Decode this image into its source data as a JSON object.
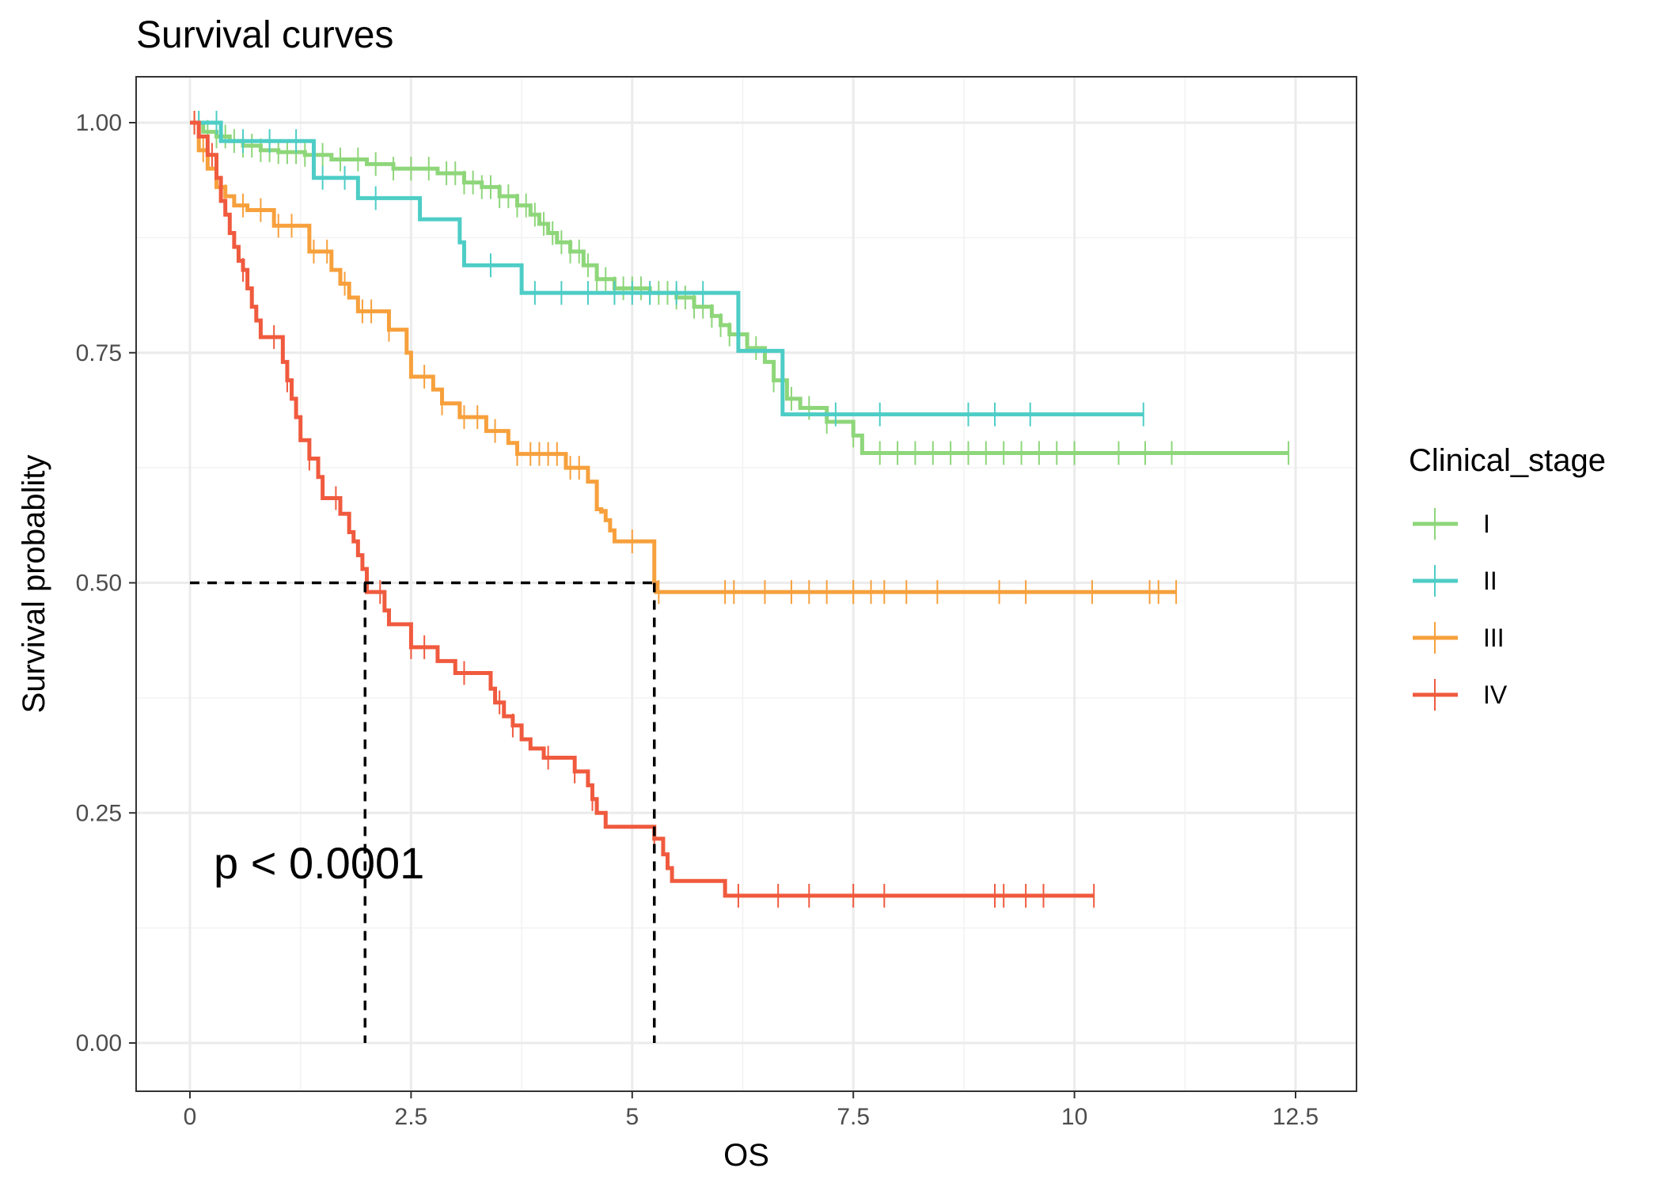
{
  "chart_data": {
    "type": "line",
    "title": "Survival curves",
    "xlabel": "OS",
    "ylabel": "Survival probablity",
    "xlim": [
      -0.3,
      12.8
    ],
    "ylim": [
      -0.05,
      1.05
    ],
    "x_ticks": [
      "0",
      "2.5",
      "5",
      "7.5",
      "10",
      "12.5"
    ],
    "y_ticks": [
      "0.00",
      "0.25",
      "0.50",
      "0.75",
      "1.00"
    ],
    "grid": true,
    "legend_title": "Clinical_stage",
    "legend_position": "right",
    "annotation": "p < 0.0001",
    "median_lines": [
      {
        "x": 1.98,
        "y": 0.5
      },
      {
        "x": 5.25,
        "y": 0.5
      }
    ],
    "series": [
      {
        "name": "I",
        "color": "#8ed67a",
        "steps": [
          [
            0,
            1.0
          ],
          [
            0.15,
            0.99
          ],
          [
            0.3,
            0.985
          ],
          [
            0.45,
            0.98
          ],
          [
            0.6,
            0.975
          ],
          [
            0.8,
            0.97
          ],
          [
            1.0,
            0.968
          ],
          [
            1.3,
            0.965
          ],
          [
            1.6,
            0.96
          ],
          [
            2.0,
            0.955
          ],
          [
            2.3,
            0.95
          ],
          [
            2.8,
            0.945
          ],
          [
            3.1,
            0.935
          ],
          [
            3.3,
            0.93
          ],
          [
            3.5,
            0.92
          ],
          [
            3.7,
            0.91
          ],
          [
            3.85,
            0.9
          ],
          [
            3.95,
            0.89
          ],
          [
            4.05,
            0.88
          ],
          [
            4.15,
            0.87
          ],
          [
            4.3,
            0.86
          ],
          [
            4.45,
            0.845
          ],
          [
            4.6,
            0.83
          ],
          [
            4.8,
            0.82
          ],
          [
            5.2,
            0.815
          ],
          [
            5.5,
            0.81
          ],
          [
            5.7,
            0.8
          ],
          [
            5.9,
            0.79
          ],
          [
            6.0,
            0.78
          ],
          [
            6.1,
            0.77
          ],
          [
            6.3,
            0.755
          ],
          [
            6.5,
            0.74
          ],
          [
            6.6,
            0.72
          ],
          [
            6.75,
            0.7
          ],
          [
            6.9,
            0.69
          ],
          [
            7.2,
            0.675
          ],
          [
            7.5,
            0.66
          ],
          [
            7.6,
            0.641
          ],
          [
            12.42,
            0.641
          ]
        ],
        "censor_x": [
          0.05,
          0.1,
          0.2,
          0.3,
          0.4,
          0.5,
          0.6,
          0.7,
          0.8,
          0.9,
          1.0,
          1.1,
          1.2,
          1.3,
          1.5,
          1.7,
          1.9,
          2.1,
          2.3,
          2.5,
          2.7,
          2.9,
          3.0,
          3.1,
          3.2,
          3.3,
          3.4,
          3.5,
          3.6,
          3.7,
          3.8,
          3.9,
          4.0,
          4.1,
          4.2,
          4.3,
          4.4,
          4.5,
          4.6,
          4.7,
          4.8,
          4.9,
          5.0,
          5.1,
          5.2,
          5.3,
          5.4,
          5.5,
          5.6,
          5.7,
          5.8,
          5.9,
          6.0,
          6.1,
          6.2,
          6.4,
          6.6,
          6.8,
          7.0,
          7.2,
          7.5,
          7.8,
          8.0,
          8.2,
          8.4,
          8.6,
          8.8,
          9.0,
          9.2,
          9.4,
          9.6,
          9.8,
          10.0,
          10.5,
          10.8,
          11.1,
          12.42
        ]
      },
      {
        "name": "II",
        "color": "#4dcdc6",
        "steps": [
          [
            0,
            1.0
          ],
          [
            0.35,
            0.98
          ],
          [
            1.4,
            0.94
          ],
          [
            1.9,
            0.918
          ],
          [
            2.6,
            0.895
          ],
          [
            3.05,
            0.87
          ],
          [
            3.1,
            0.845
          ],
          [
            3.75,
            0.815
          ],
          [
            6.2,
            0.752
          ],
          [
            6.7,
            0.683
          ],
          [
            10.78,
            0.683
          ]
        ],
        "censor_x": [
          0.1,
          0.3,
          0.6,
          0.9,
          1.2,
          1.5,
          1.75,
          2.1,
          3.4,
          3.9,
          4.2,
          4.5,
          4.8,
          5.0,
          5.2,
          5.5,
          5.8,
          7.3,
          7.8,
          8.8,
          9.1,
          9.5,
          10.78
        ]
      },
      {
        "name": "III",
        "color": "#f7a03c",
        "steps": [
          [
            0,
            1.0
          ],
          [
            0.1,
            0.97
          ],
          [
            0.2,
            0.95
          ],
          [
            0.3,
            0.93
          ],
          [
            0.4,
            0.92
          ],
          [
            0.5,
            0.91
          ],
          [
            0.65,
            0.905
          ],
          [
            0.95,
            0.888
          ],
          [
            1.35,
            0.86
          ],
          [
            1.6,
            0.84
          ],
          [
            1.7,
            0.825
          ],
          [
            1.8,
            0.81
          ],
          [
            1.9,
            0.795
          ],
          [
            2.25,
            0.775
          ],
          [
            2.45,
            0.75
          ],
          [
            2.5,
            0.724
          ],
          [
            2.75,
            0.71
          ],
          [
            2.85,
            0.695
          ],
          [
            3.05,
            0.68
          ],
          [
            3.35,
            0.665
          ],
          [
            3.6,
            0.652
          ],
          [
            3.7,
            0.64
          ],
          [
            4.25,
            0.625
          ],
          [
            4.5,
            0.61
          ],
          [
            4.6,
            0.58
          ],
          [
            4.65,
            0.575
          ],
          [
            4.65,
            0.578
          ],
          [
            4.7,
            0.568
          ],
          [
            4.75,
            0.557
          ],
          [
            4.8,
            0.545
          ],
          [
            5.25,
            0.5
          ],
          [
            5.27,
            0.49
          ],
          [
            11.15,
            0.49
          ]
        ],
        "censor_x": [
          0.05,
          0.15,
          0.4,
          0.6,
          0.8,
          1.0,
          1.15,
          1.4,
          1.55,
          1.75,
          1.95,
          2.05,
          2.25,
          2.65,
          2.85,
          3.1,
          3.25,
          3.45,
          3.7,
          3.85,
          3.95,
          4.05,
          4.15,
          4.3,
          4.4,
          5.0,
          5.3,
          6.05,
          6.15,
          6.5,
          6.8,
          7.0,
          7.2,
          7.5,
          7.7,
          7.85,
          8.1,
          8.45,
          9.15,
          9.45,
          10.2,
          10.85,
          10.95,
          11.15
        ]
      },
      {
        "name": "IV",
        "color": "#f05a3e",
        "steps": [
          [
            0,
            1.0
          ],
          [
            0.1,
            0.985
          ],
          [
            0.2,
            0.965
          ],
          [
            0.3,
            0.94
          ],
          [
            0.35,
            0.915
          ],
          [
            0.4,
            0.9
          ],
          [
            0.45,
            0.88
          ],
          [
            0.5,
            0.865
          ],
          [
            0.55,
            0.85
          ],
          [
            0.6,
            0.84
          ],
          [
            0.65,
            0.82
          ],
          [
            0.7,
            0.8
          ],
          [
            0.75,
            0.785
          ],
          [
            0.8,
            0.767
          ],
          [
            1.05,
            0.74
          ],
          [
            1.1,
            0.72
          ],
          [
            1.15,
            0.7
          ],
          [
            1.2,
            0.68
          ],
          [
            1.25,
            0.655
          ],
          [
            1.35,
            0.635
          ],
          [
            1.45,
            0.615
          ],
          [
            1.5,
            0.592
          ],
          [
            1.7,
            0.575
          ],
          [
            1.8,
            0.555
          ],
          [
            1.85,
            0.545
          ],
          [
            1.9,
            0.53
          ],
          [
            1.95,
            0.515
          ],
          [
            2.0,
            0.49
          ],
          [
            2.2,
            0.47
          ],
          [
            2.25,
            0.455
          ],
          [
            2.5,
            0.43
          ],
          [
            2.8,
            0.415
          ],
          [
            3.0,
            0.402
          ],
          [
            3.4,
            0.385
          ],
          [
            3.45,
            0.37
          ],
          [
            3.55,
            0.355
          ],
          [
            3.65,
            0.345
          ],
          [
            3.75,
            0.33
          ],
          [
            3.85,
            0.32
          ],
          [
            4.0,
            0.31
          ],
          [
            4.35,
            0.295
          ],
          [
            4.5,
            0.28
          ],
          [
            4.55,
            0.265
          ],
          [
            4.6,
            0.25
          ],
          [
            4.7,
            0.235
          ],
          [
            5.25,
            0.222
          ],
          [
            5.35,
            0.205
          ],
          [
            5.4,
            0.19
          ],
          [
            5.45,
            0.176
          ],
          [
            6.05,
            0.16
          ],
          [
            10.22,
            0.16
          ]
        ],
        "censor_x": [
          0.05,
          0.25,
          0.6,
          0.95,
          1.1,
          1.35,
          1.65,
          2.15,
          2.5,
          2.65,
          3.1,
          3.5,
          3.65,
          4.05,
          4.35,
          4.55,
          5.25,
          6.2,
          6.65,
          7.0,
          7.5,
          7.85,
          9.1,
          9.2,
          9.45,
          9.65,
          10.22
        ]
      }
    ]
  }
}
